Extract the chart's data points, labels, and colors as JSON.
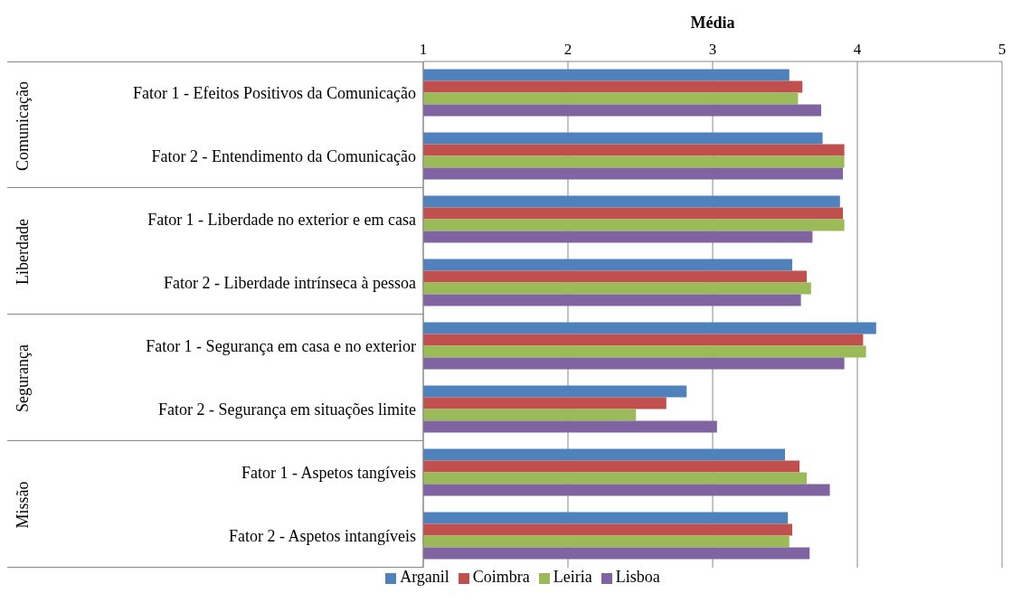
{
  "chart_data": {
    "type": "bar",
    "orientation": "horizontal",
    "xlabel": "Média",
    "categories": [
      "Fator 1 - Efeitos Positivos da Comunicação",
      "Fator 2 - Entendimento da Comunicação",
      "Fator 1 - Liberdade no exterior e em casa",
      "Fator 2 - Liberdade intrínseca à pessoa",
      "Fator 1 - Segurança em casa e no exterior",
      "Fator 2 - Segurança em situações limite",
      "Fator 1 - Aspetos tangíveis",
      "Fator 2 - Aspetos intangíveis"
    ],
    "annotations": [
      "Comunicação",
      "Liberdade",
      "Segurança",
      "Missão"
    ],
    "series": [
      {
        "name": "Arganil",
        "color": "#4f81bd",
        "values": [
          3.53,
          3.76,
          3.88,
          3.55,
          4.13,
          2.82,
          3.5,
          3.52
        ]
      },
      {
        "name": "Coimbra",
        "color": "#c0504d",
        "values": [
          3.62,
          3.91,
          3.9,
          3.65,
          4.04,
          2.68,
          3.6,
          3.55
        ]
      },
      {
        "name": "Leiria",
        "color": "#9bbb59",
        "values": [
          3.59,
          3.91,
          3.91,
          3.68,
          4.06,
          2.47,
          3.65,
          3.53
        ]
      },
      {
        "name": "Lisboa",
        "color": "#8064a2",
        "values": [
          3.75,
          3.9,
          3.69,
          3.61,
          3.91,
          3.03,
          3.81,
          3.67
        ]
      }
    ],
    "xlim": [
      1,
      5
    ],
    "xticks": [
      1,
      2,
      3,
      4,
      5
    ],
    "grid": "x",
    "legend": "bottom"
  }
}
